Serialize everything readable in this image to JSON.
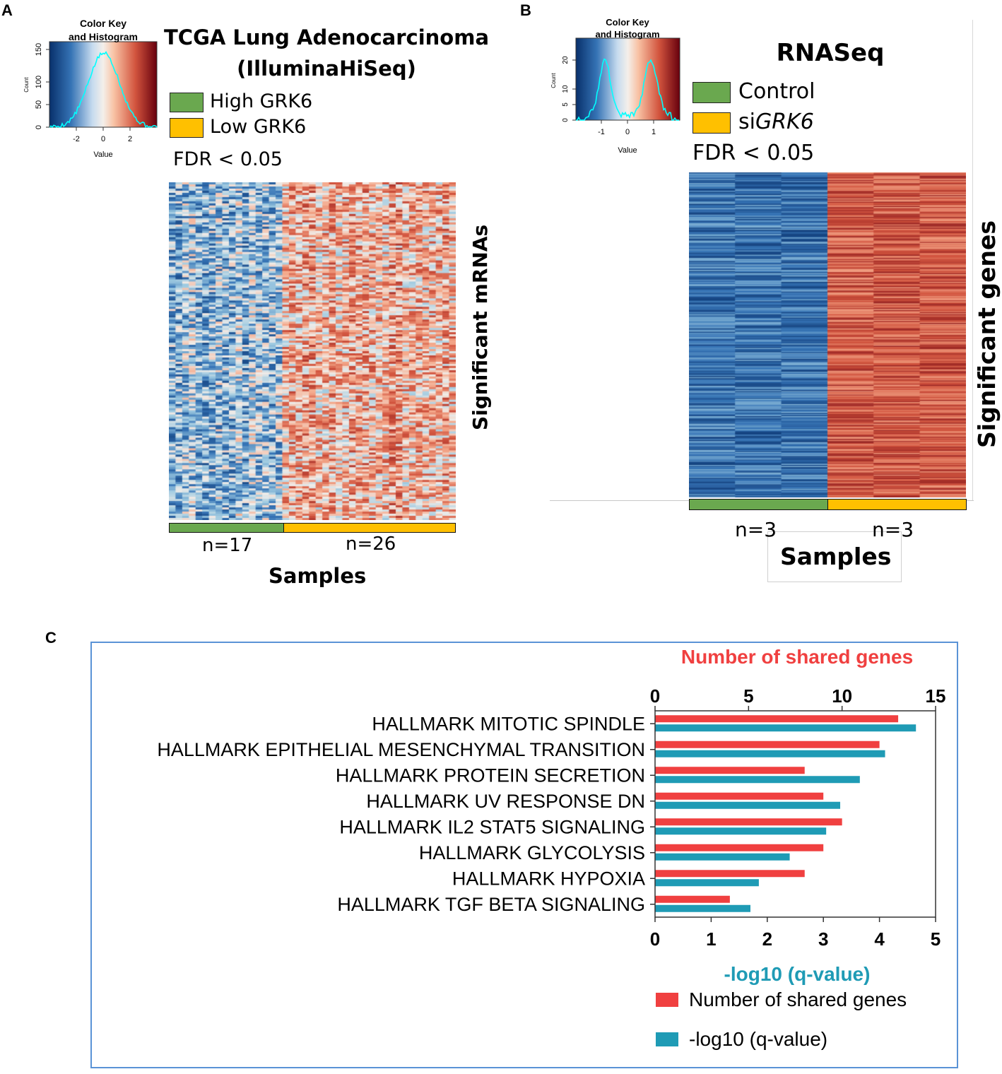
{
  "panels": {
    "a": {
      "letter": "A",
      "title_line1": "TCGA Lung Adenocarcinoma",
      "title_line2": "(IlluminaHiSeq)",
      "legend": [
        {
          "label": "High GRK6",
          "color": "#6aa84f"
        },
        {
          "label": "Low GRK6",
          "color": "#ffc000"
        }
      ],
      "fdr": "FDR < 0.05",
      "ylabel": "Significant mRNAs",
      "xlabel": "Samples",
      "groups": [
        {
          "label": "n=17",
          "n": 17,
          "color": "#6aa84f"
        },
        {
          "label": "n=26",
          "n": 26,
          "color": "#ffc000"
        }
      ],
      "colorkey": {
        "title_line1": "Color Key",
        "title_line2": "and Histogram",
        "ylabel": "Count",
        "xlabel": "Value",
        "xticks": [
          "-2",
          "0",
          "2"
        ],
        "yticks": [
          "0",
          "50",
          "100",
          "150"
        ]
      }
    },
    "b": {
      "letter": "B",
      "title": "RNASeq",
      "legend": [
        {
          "label": "Control",
          "color": "#6aa84f"
        },
        {
          "label_prefix": "si",
          "label_italic": "GRK6",
          "color": "#ffc000"
        }
      ],
      "fdr": "FDR < 0.05",
      "ylabel": "Significant genes",
      "xlabel": "Samples",
      "groups": [
        {
          "label": "n=3",
          "n": 3,
          "color": "#6aa84f"
        },
        {
          "label": "n=3",
          "n": 3,
          "color": "#ffc000"
        }
      ],
      "colorkey": {
        "title_line1": "Color Key",
        "title_line2": "and Histogram",
        "ylabel": "Count",
        "xlabel": "Value",
        "xticks": [
          "-1",
          "0",
          "1"
        ],
        "yticks": [
          "0",
          "5",
          "10",
          "20"
        ]
      }
    },
    "c": {
      "letter": "C"
    }
  },
  "chart_data": {
    "type": "bar",
    "orientation": "horizontal",
    "categories": [
      "HALLMARK MITOTIC SPINDLE",
      "HALLMARK EPITHELIAL MESENCHYMAL TRANSITION",
      "HALLMARK PROTEIN SECRETION",
      "HALLMARK UV RESPONSE DN",
      "HALLMARK IL2 STAT5 SIGNALING",
      "HALLMARK GLYCOLYSIS",
      "HALLMARK HYPOXIA",
      "HALLMARK TGF BETA SIGNALING"
    ],
    "series": [
      {
        "name": "Number of shared genes",
        "color": "#f04040",
        "axis": "top",
        "values": [
          13,
          12,
          8,
          9,
          10,
          9,
          8,
          4
        ]
      },
      {
        "name": "-log10 (q-value)",
        "color": "#1f9bb5",
        "axis": "bottom",
        "values": [
          4.65,
          4.1,
          3.65,
          3.3,
          3.05,
          2.4,
          1.85,
          1.7
        ]
      }
    ],
    "top_axis": {
      "label": "Number of shared genes",
      "range": [
        0,
        15
      ],
      "ticks": [
        "0",
        "5",
        "10",
        "15"
      ],
      "color": "#f04040"
    },
    "bottom_axis": {
      "label": "-log10 (q-value)",
      "range": [
        0,
        5
      ],
      "ticks": [
        "0",
        "1",
        "2",
        "3",
        "4",
        "5"
      ],
      "color": "#1f9bb5"
    },
    "legend_position": "bottom-right"
  }
}
